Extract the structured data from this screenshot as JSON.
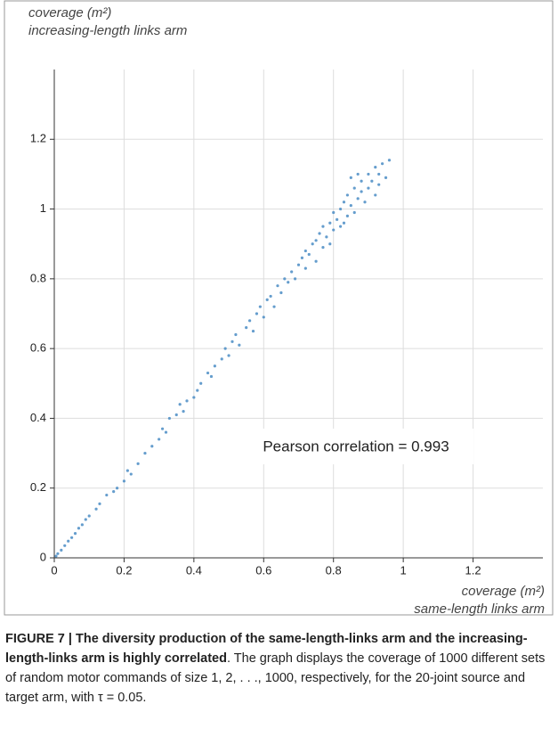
{
  "chart_data": {
    "type": "scatter",
    "ylabel": [
      "coverage (m²)",
      "increasing-length links arm"
    ],
    "xlabel": [
      "coverage (m²)",
      "same-length links arm"
    ],
    "annotation": "Pearson correlation = 0.993",
    "color": "#4a8cc4",
    "grid": true,
    "xlim": [
      0,
      1.4
    ],
    "ylim": [
      0,
      1.4
    ],
    "xticks": [
      0,
      0.2,
      0.4,
      0.6,
      0.8,
      1,
      1.2
    ],
    "yticks": [
      0,
      0.2,
      0.4,
      0.6,
      0.8,
      1,
      1.2
    ],
    "x": [
      0.005,
      0.01,
      0.02,
      0.03,
      0.04,
      0.05,
      0.06,
      0.07,
      0.08,
      0.09,
      0.1,
      0.12,
      0.13,
      0.15,
      0.17,
      0.18,
      0.2,
      0.21,
      0.22,
      0.24,
      0.26,
      0.28,
      0.3,
      0.31,
      0.32,
      0.33,
      0.35,
      0.36,
      0.37,
      0.38,
      0.4,
      0.41,
      0.42,
      0.44,
      0.45,
      0.46,
      0.48,
      0.49,
      0.5,
      0.51,
      0.52,
      0.53,
      0.55,
      0.56,
      0.57,
      0.58,
      0.59,
      0.6,
      0.61,
      0.62,
      0.63,
      0.64,
      0.65,
      0.66,
      0.67,
      0.68,
      0.69,
      0.7,
      0.71,
      0.72,
      0.72,
      0.73,
      0.74,
      0.75,
      0.75,
      0.76,
      0.77,
      0.77,
      0.78,
      0.79,
      0.8,
      0.8,
      0.81,
      0.82,
      0.82,
      0.83,
      0.84,
      0.84,
      0.85,
      0.86,
      0.86,
      0.87,
      0.88,
      0.88,
      0.89,
      0.9,
      0.9,
      0.91,
      0.92,
      0.92,
      0.93,
      0.94,
      0.95,
      0.85,
      0.83,
      0.79,
      0.87,
      0.93,
      0.96
    ],
    "values": [
      0.005,
      0.012,
      0.022,
      0.035,
      0.048,
      0.058,
      0.07,
      0.085,
      0.095,
      0.11,
      0.12,
      0.14,
      0.155,
      0.18,
      0.19,
      0.2,
      0.22,
      0.25,
      0.24,
      0.27,
      0.3,
      0.32,
      0.34,
      0.37,
      0.36,
      0.4,
      0.41,
      0.44,
      0.42,
      0.45,
      0.46,
      0.48,
      0.5,
      0.53,
      0.52,
      0.55,
      0.57,
      0.6,
      0.58,
      0.62,
      0.64,
      0.61,
      0.66,
      0.68,
      0.65,
      0.7,
      0.72,
      0.69,
      0.74,
      0.75,
      0.72,
      0.78,
      0.76,
      0.8,
      0.79,
      0.82,
      0.8,
      0.84,
      0.86,
      0.83,
      0.88,
      0.87,
      0.9,
      0.85,
      0.91,
      0.93,
      0.89,
      0.95,
      0.92,
      0.96,
      0.94,
      0.99,
      0.97,
      1.0,
      0.95,
      1.02,
      0.98,
      1.04,
      1.01,
      1.06,
      0.99,
      1.03,
      1.08,
      1.05,
      1.02,
      1.1,
      1.06,
      1.08,
      1.12,
      1.04,
      1.1,
      1.13,
      1.09,
      1.09,
      0.96,
      0.9,
      1.1,
      1.07,
      1.14
    ]
  },
  "caption": {
    "label": "FIGURE 7 | The diversity production of the same-length-links arm and the increasing-length-links arm is highly correlated",
    "text": ". The graph displays the coverage of 1000 different sets of random motor commands of size 1, 2, . . ., 1000, respectively, for the 20-joint source and target arm, with τ = 0.05."
  }
}
